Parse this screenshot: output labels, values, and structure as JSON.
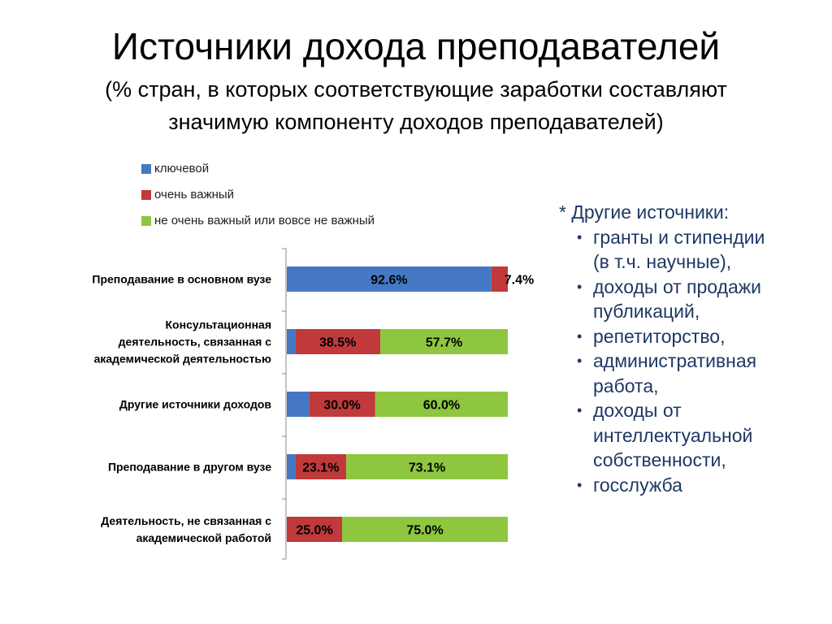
{
  "title": "Источники дохода преподавателей",
  "subtitle_line1": "(% стран, в которых соответствующие заработки составляют",
  "subtitle_line2": "значимую компоненту доходов преподавателей)",
  "colors": {
    "key": "#4478c4",
    "very_important": "#c0393b",
    "not_important": "#8ec63f"
  },
  "legend": [
    {
      "label": "ключевой",
      "color": "#4478c4"
    },
    {
      "label": "очень важный",
      "color": "#c0393b"
    },
    {
      "label": "не очень важный или вовсе не важный",
      "color": "#8ec63f"
    }
  ],
  "chart_data": {
    "type": "bar",
    "orientation": "horizontal",
    "stacked": true,
    "categories": [
      [
        "Преподавание в основном вузе"
      ],
      [
        "Консультационная",
        "деятельность, связанная с",
        "академической деятельностью"
      ],
      [
        "Другие источники доходов"
      ],
      [
        "Преподавание в другом вузе"
      ],
      [
        "Деятельность, не связанная с",
        "академической работой"
      ]
    ],
    "series": [
      {
        "name": "ключевой",
        "values": [
          92.6,
          3.8,
          10.0,
          3.8,
          0.0
        ],
        "labels": [
          "92.6%",
          "",
          "",
          "",
          ""
        ]
      },
      {
        "name": "очень важный",
        "values": [
          7.4,
          38.5,
          30.0,
          23.1,
          25.0
        ],
        "labels": [
          "7.4%",
          "38.5%",
          "30.0%",
          "23.1%",
          "25.0%"
        ]
      },
      {
        "name": "не очень важный или вовсе не важный",
        "values": [
          0.0,
          57.7,
          60.0,
          73.1,
          75.0
        ],
        "labels": [
          "",
          "57.7%",
          "60.0%",
          "73.1%",
          "75.0%"
        ]
      }
    ],
    "xlim": [
      0,
      100
    ],
    "legend_position": "top-left",
    "grid": false
  },
  "note": {
    "header": "* Другие источники:",
    "items": [
      [
        "гранты и стипендии",
        "(в т.ч. научные),"
      ],
      [
        "доходы от продажи",
        "публикаций,"
      ],
      [
        "репетиторство,"
      ],
      [
        "административная",
        "работа,"
      ],
      [
        "доходы от",
        "интеллектуальной",
        "собственности,"
      ],
      [
        "госслужба"
      ]
    ]
  }
}
